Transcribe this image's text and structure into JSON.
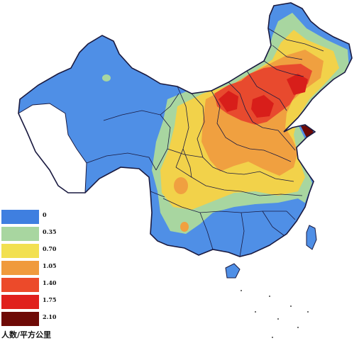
{
  "legend": {
    "items": [
      {
        "label": "0",
        "color": "#3f7fe0"
      },
      {
        "label": "0.35",
        "color": "#a8d6a0"
      },
      {
        "label": "0.70",
        "color": "#f2e050"
      },
      {
        "label": "1.05",
        "color": "#f09a3c"
      },
      {
        "label": "1.40",
        "color": "#ec4a2a"
      },
      {
        "label": "1.75",
        "color": "#e0201c"
      },
      {
        "label": "2.10",
        "color": "#6e0a06"
      }
    ],
    "unit": "人数/平方公里"
  },
  "colors": {
    "blue": "#4f8fe6",
    "green": "#a8d6a0",
    "yellow": "#f2d24a",
    "orange": "#f0a040",
    "red": "#e84a2e",
    "darkred": "#6e0a06",
    "border": "#1a1a40"
  }
}
